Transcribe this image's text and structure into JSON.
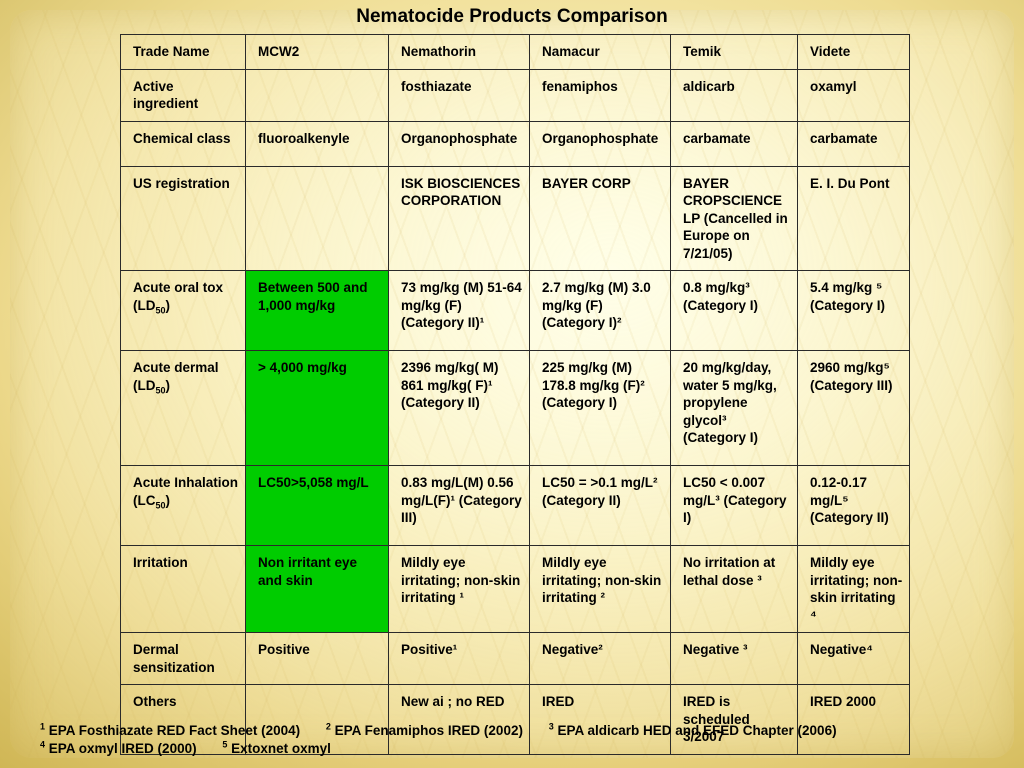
{
  "title": "Nematocide Products Comparison",
  "table": {
    "header": [
      "Trade Name",
      "MCW2",
      "Nemathorin",
      "Namacur",
      "Temik",
      "Videte"
    ],
    "rows": [
      {
        "label": "Active ingredient",
        "cells": [
          "",
          "fosthiazate",
          "fenamiphos",
          "aldicarb",
          "oxamyl"
        ]
      },
      {
        "label": "Chemical class",
        "cells": [
          "fluoroalkenyle",
          "Organophosphate",
          "Organophosphate",
          "carbamate",
          "carbamate"
        ]
      },
      {
        "label": "US registration",
        "cells": [
          "",
          "ISK BIOSCIENCES CORPORATION",
          "BAYER CORP",
          "BAYER CROPSCIENCE LP (Cancelled in Europe on 7/21/05)",
          "E. I. Du Pont"
        ]
      },
      {
        "label_parts": [
          "Acute oral tox (LD",
          "50",
          ")"
        ],
        "cells": [
          "Between 500 and 1,000 mg/kg",
          "73 mg/kg (M) 51-64 mg/kg (F)(Category II)¹",
          "2.7 mg/kg (M) 3.0 mg/kg (F) (Category I)²",
          "0.8 mg/kg³ (Category I)",
          "5.4 mg/kg ⁵ (Category I)"
        ]
      },
      {
        "label_parts": [
          "Acute dermal (LD",
          "50",
          ")"
        ],
        "cells": [
          "> 4,000 mg/kg",
          "2396 mg/kg( M) 861 mg/kg( F)¹ (Category II)",
          "225 mg/kg (M) 178.8 mg/kg (F)² (Category I)",
          "20 mg/kg/day, water 5 mg/kg, propylene glycol³ (Category I)",
          "2960 mg/kg⁵ (Category III)"
        ]
      },
      {
        "label_parts": [
          "Acute Inhalation (LC",
          "50",
          ")"
        ],
        "cells": [
          "LC50>5,058 mg/L",
          "0.83 mg/L(M) 0.56 mg/L(F)¹ (Category III)",
          "LC50 = >0.1 mg/L² (Category II)",
          "LC50 < 0.007 mg/L³ (Category I)",
          "0.12-0.17 mg/L⁵ (Category II)"
        ]
      },
      {
        "label": "Irritation",
        "cells": [
          "Non irritant eye and skin",
          "Mildly eye irritating; non-skin irritating ¹",
          "Mildly eye irritating; non-skin irritating ²",
          "No irritation at lethal dose ³",
          "Mildly eye irritating; non-skin irritating ⁴"
        ]
      },
      {
        "label": "Dermal sensitization",
        "cells": [
          "Positive",
          "Positive¹",
          "Negative²",
          "Negative ³",
          "Negative⁴"
        ]
      },
      {
        "label": "Others",
        "cells": [
          "",
          "New ai ; no RED",
          "IRED",
          "IRED is scheduled 3/2007",
          "IRED 2000"
        ]
      }
    ]
  },
  "footnotes": [
    {
      "num": "1",
      "text": "EPA Fosthiazate RED Fact Sheet (2004)"
    },
    {
      "num": "2",
      "text": "EPA Fenamiphos IRED (2002)"
    },
    {
      "num": "3",
      "text": "EPA aldicarb HED and EFED Chapter (2006)"
    },
    {
      "num": "4",
      "text": "EPA oxmyl IRED (2000)"
    },
    {
      "num": "5",
      "text": "Extoxnet oxmyl"
    }
  ],
  "colors": {
    "highlight": "#00cc00",
    "border": "#2a2a2a",
    "text": "#000000"
  }
}
